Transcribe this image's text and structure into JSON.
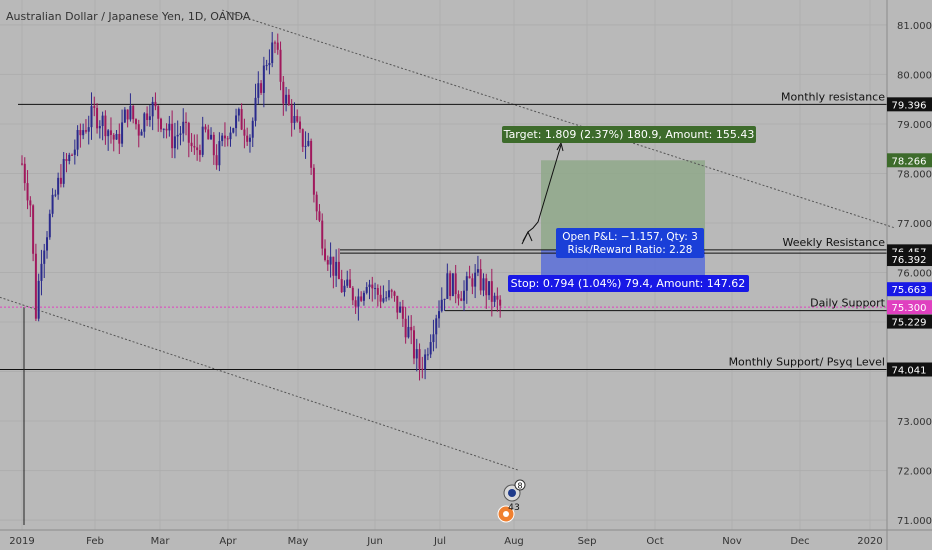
{
  "chart_data": {
    "type": "candlestick",
    "title": "Australian Dollar / Japanese Yen, 1D, OANDA",
    "ylim": [
      70.8,
      81.2
    ],
    "y_ticks": [
      "81.000",
      "80.000",
      "79.000",
      "78.000",
      "77.000",
      "76.000",
      "75.000",
      "74.000",
      "73.000",
      "72.000",
      "71.000"
    ],
    "x_ticks": [
      "2019",
      "Feb",
      "Mar",
      "Apr",
      "May",
      "Jun",
      "Jul",
      "Aug",
      "Sep",
      "Oct",
      "Nov",
      "Dec",
      "2020"
    ],
    "grid": true,
    "close_path": [
      [
        0,
        78.2
      ],
      [
        3,
        77.4
      ],
      [
        5,
        75.2
      ],
      [
        7,
        76.4
      ],
      [
        10,
        77.1
      ],
      [
        14,
        78.0
      ],
      [
        18,
        78.4
      ],
      [
        22,
        78.9
      ],
      [
        26,
        79.2
      ],
      [
        30,
        79.0
      ],
      [
        34,
        78.6
      ],
      [
        38,
        79.3
      ],
      [
        42,
        78.9
      ],
      [
        46,
        79.4
      ],
      [
        50,
        79.1
      ],
      [
        54,
        78.7
      ],
      [
        58,
        78.9
      ],
      [
        62,
        78.4
      ],
      [
        66,
        78.8
      ],
      [
        70,
        78.3
      ],
      [
        74,
        78.9
      ],
      [
        78,
        79.1
      ],
      [
        82,
        78.8
      ],
      [
        85,
        79.6
      ],
      [
        88,
        80.3
      ],
      [
        91,
        80.6
      ],
      [
        94,
        79.6
      ],
      [
        97,
        79.2
      ],
      [
        100,
        78.7
      ],
      [
        103,
        78.6
      ],
      [
        106,
        77.2
      ],
      [
        109,
        76.5
      ],
      [
        112,
        76.1
      ],
      [
        115,
        75.7
      ],
      [
        118,
        75.6
      ],
      [
        121,
        75.5
      ],
      [
        124,
        75.9
      ],
      [
        127,
        75.6
      ],
      [
        130,
        75.5
      ],
      [
        133,
        75.5
      ],
      [
        136,
        75.2
      ],
      [
        139,
        74.8
      ],
      [
        141,
        74.4
      ],
      [
        143,
        74.1
      ],
      [
        145,
        74.3
      ],
      [
        147,
        74.8
      ],
      [
        149,
        75.2
      ],
      [
        151,
        75.5
      ],
      [
        153,
        75.8
      ],
      [
        156,
        75.7
      ],
      [
        159,
        75.6
      ],
      [
        162,
        75.9
      ],
      [
        165,
        75.8
      ],
      [
        168,
        75.6
      ],
      [
        170,
        75.4
      ],
      [
        172,
        75.3
      ]
    ],
    "levels": [
      {
        "name": "Monthly resistance",
        "value": 79.396,
        "label": "79.396"
      },
      {
        "name": "Weekly Resistance",
        "value": 76.457,
        "label": "76.457"
      },
      {
        "name": "",
        "value": 76.392,
        "label": "76.392"
      },
      {
        "name": "Daily Support",
        "value": 75.229,
        "label": "75.229"
      },
      {
        "name": "Monthly Support/ Psyq Level",
        "value": 74.041,
        "label": "74.041"
      }
    ],
    "current_price": {
      "value": 75.3,
      "label": "75.300",
      "color": "#e040c0"
    },
    "position": {
      "entry": 76.457,
      "entry_label": "76.457",
      "target": 78.266,
      "target_label": "78.266",
      "stop": 75.663,
      "stop_label": "75.663",
      "target_text": "Target: 1.809 (2.37%) 180.9, Amount: 155.43",
      "pnl_text": "Open P&L: −1.157, Qty: 3",
      "rr_text": "Risk/Reward Ratio: 2.28",
      "stop_text": "Stop: 0.794 (1.04%) 79.4, Amount: 147.62"
    },
    "trendlines": [
      {
        "from": [
          72,
          81.3
        ],
        "to": [
          314,
          76.9
        ]
      },
      {
        "from": [
          -8,
          75.5
        ],
        "to": [
          179,
          72.0
        ]
      }
    ],
    "events": [
      {
        "icon": "flag-event-icon",
        "count": "8"
      },
      {
        "icon": "earnings-event-icon",
        "count": "4"
      },
      {
        "icon": "dividend-event-icon",
        "count": "3"
      }
    ],
    "colors": {
      "background": "#b9b9b9",
      "candle_up": "#2a2a8c",
      "candle_down": "#a0185c",
      "target_zone": "#8fa88a",
      "stop_zone": "#5a6fd8",
      "target_tag": "#3d6b2b",
      "stop_tag": "#1818e6"
    }
  }
}
